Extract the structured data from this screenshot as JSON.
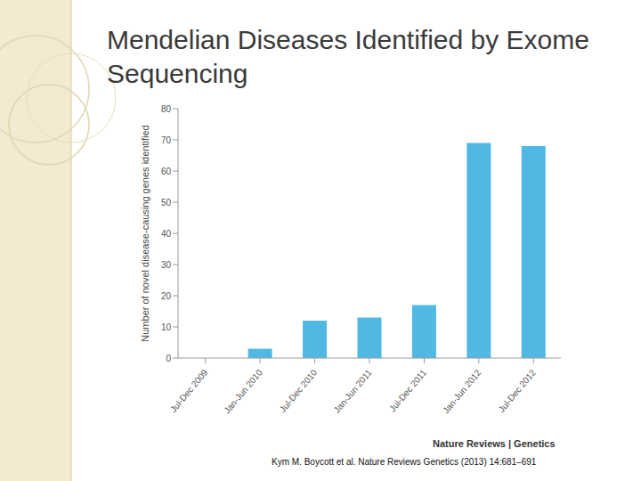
{
  "chart_data": {
    "type": "bar",
    "title": "Mendelian Diseases Identified by Exome Sequencing",
    "y_label": "Number of novel disease-causing genes identified",
    "categories": [
      "Jul-Dec 2009",
      "Jan-Jun 2010",
      "Jul-Dec 2010",
      "Jan-Jun 2011",
      "Jul-Dec 2011",
      "Jan-Jun 2012",
      "Jul-Dec 2012"
    ],
    "values": [
      0,
      3,
      12,
      13,
      17,
      69,
      68
    ],
    "color": "#4fb9e3",
    "ylim": [
      0,
      80
    ],
    "yticks": [
      0,
      10,
      20,
      30,
      40,
      50,
      60,
      70,
      80
    ],
    "annotations": [
      "Nature Reviews | Genetics",
      "Kym M. Boycott et al. Nature Reviews Genetics (2013) 14:681–691"
    ]
  }
}
